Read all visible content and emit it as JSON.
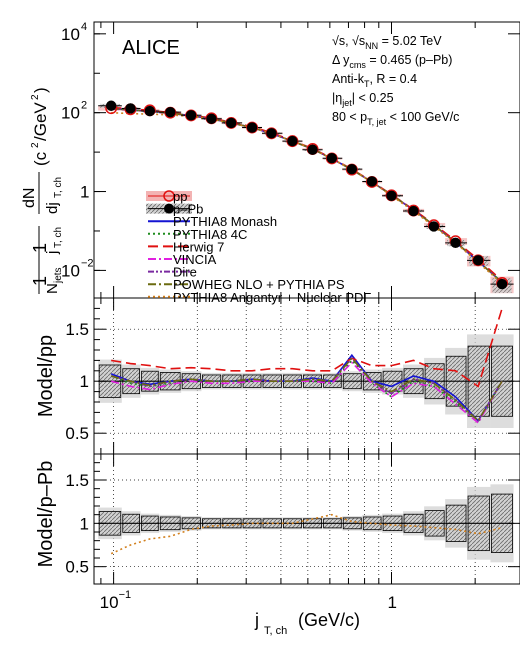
{
  "chart_data": {
    "type": "line",
    "experiment": "ALICE",
    "annotations": [
      [
        "√s, √s",
        "NN",
        " = 5.02 TeV"
      ],
      [
        "Δ y",
        "cms",
        " = 0.465 (p–Pb)"
      ],
      [
        "Anti-k",
        "T",
        ", R = 0.4"
      ],
      [
        "|η",
        "jet",
        "| < 0.25"
      ],
      [
        "80 < p",
        "T, jet",
        " < 100 GeV/c"
      ]
    ],
    "xlabel": [
      "j",
      "T, ch",
      " (GeV/c)"
    ],
    "ylabel_top": "(1/N_jets)(1/j_T,ch) dN/dj_T,ch (c²/GeV²)",
    "ylabel_mid": "Model/pp",
    "ylabel_bottom": "Model/p–Pb",
    "x_scale": "log",
    "xlim": [
      0.085,
      2.9
    ],
    "top_ylim_log10": [
      -2.7,
      4.3
    ],
    "mid_ylim": [
      0.3,
      1.8
    ],
    "bottom_ylim": [
      0.3,
      1.8
    ],
    "x_ticks": [
      {
        "v": 0.1,
        "t": "10"
      },
      {
        "v": 1,
        "t": "1"
      }
    ],
    "top_y_ticks": [
      "10",
      "10",
      "1",
      "10"
    ],
    "ratio_y_ticks": [
      {
        "v": 0.5,
        "t": "0.5"
      },
      {
        "v": 1,
        "t": "1"
      },
      {
        "v": 1.5,
        "t": "1.5"
      }
    ],
    "legend": [
      {
        "label": "pp",
        "style": "open-circle-red"
      },
      {
        "label": "p–Pb",
        "style": "filled-circle-black"
      },
      {
        "label": "PYTHIA8 Monash",
        "style": "solid",
        "color": "#1414d2"
      },
      {
        "label": "PYTHIA8 4C",
        "style": "dotted",
        "color": "#1e8c1e"
      },
      {
        "label": "Herwig 7",
        "style": "dashed",
        "color": "#e01010"
      },
      {
        "label": "VINCIA",
        "style": "dashdot",
        "color": "#e020e0"
      },
      {
        "label": "Dire",
        "style": "dashdotdot",
        "color": "#7a2aa0"
      },
      {
        "label": "POWHEG NLO + PYTHIA PS",
        "style": "dashdot",
        "color": "#6b6b10"
      },
      {
        "label": "PYTHIA8 Angantyr + Nuclear PDF",
        "style": "dotted",
        "color": "#d2801e"
      }
    ],
    "x": [
      0.098,
      0.115,
      0.135,
      0.16,
      0.19,
      0.225,
      0.265,
      0.315,
      0.37,
      0.44,
      0.52,
      0.61,
      0.72,
      0.85,
      1.0,
      1.2,
      1.42,
      1.7,
      2.05,
      2.5
    ],
    "bin_edges": [
      0.088,
      0.107,
      0.125,
      0.146,
      0.175,
      0.207,
      0.245,
      0.29,
      0.342,
      0.405,
      0.478,
      0.565,
      0.665,
      0.785,
      0.925,
      1.1,
      1.31,
      1.56,
      1.87,
      2.27,
      2.75
    ],
    "pp": [
      130,
      122,
      115,
      100,
      85,
      72,
      55,
      42,
      30,
      19,
      12,
      6.9,
      3.6,
      1.75,
      0.8,
      0.33,
      0.14,
      0.055,
      0.018,
      0.0048
    ],
    "pPb": [
      150,
      128,
      110,
      103,
      86,
      70,
      55,
      42,
      30,
      19,
      11.5,
      7.0,
      3.7,
      1.8,
      0.78,
      0.32,
      0.13,
      0.05,
      0.018,
      0.0045
    ],
    "rel_uncertainty": [
      0.13,
      0.1,
      0.08,
      0.07,
      0.06,
      0.05,
      0.05,
      0.05,
      0.05,
      0.05,
      0.05,
      0.05,
      0.06,
      0.07,
      0.08,
      0.1,
      0.14,
      0.2,
      0.3,
      0.45
    ],
    "models": [
      {
        "name": "PYTHIA8 Monash",
        "values": [
          128,
          118,
          109,
          97,
          84,
          70,
          55,
          42,
          29.5,
          19,
          12,
          6.8,
          3.6,
          1.75,
          0.82,
          0.34,
          0.14,
          0.052,
          0.017,
          0.005
        ]
      },
      {
        "name": "PYTHIA8 4C",
        "values": [
          126,
          117,
          108,
          96,
          83,
          70,
          55,
          42,
          29.5,
          19,
          12,
          6.8,
          3.6,
          1.75,
          0.82,
          0.34,
          0.14,
          0.052,
          0.017,
          0.005
        ]
      },
      {
        "name": "Herwig 7",
        "values": [
          135,
          125,
          114,
          101,
          87,
          73,
          57,
          44,
          31,
          19.6,
          12.3,
          7.0,
          3.7,
          1.8,
          0.84,
          0.35,
          0.15,
          0.056,
          0.019,
          0.0055
        ]
      },
      {
        "name": "VINCIA",
        "values": [
          125,
          116,
          107,
          96,
          83,
          70,
          55,
          42,
          29.5,
          19,
          12,
          6.8,
          3.6,
          1.75,
          0.82,
          0.34,
          0.14,
          0.052,
          0.017,
          0.005
        ]
      },
      {
        "name": "Dire",
        "values": [
          127,
          117,
          108,
          97,
          84,
          70,
          55,
          42,
          29.5,
          19,
          12,
          6.8,
          3.6,
          1.75,
          0.82,
          0.34,
          0.14,
          0.052,
          0.017,
          0.005
        ]
      },
      {
        "name": "POWHEG NLO + PYTHIA PS",
        "values": [
          127,
          118,
          109,
          97,
          84,
          70,
          55,
          42,
          29.5,
          19,
          12,
          6.8,
          3.6,
          1.75,
          0.82,
          0.34,
          0.14,
          0.052,
          0.017,
          0.005
        ]
      },
      {
        "name": "PYTHIA8 Angantyr + Nuclear PDF",
        "values": [
          100,
          95,
          92,
          88,
          80,
          68,
          54,
          42,
          30,
          19,
          12,
          6.8,
          3.6,
          1.75,
          0.78,
          0.32,
          0.13,
          0.05,
          0.016,
          0.0046
        ]
      }
    ],
    "ratio_pp": [
      {
        "name": "PYTHIA8 Monash",
        "values": [
          1.07,
          1.0,
          0.97,
          1.0,
          1.02,
          1.0,
          1.0,
          1.02,
          1.0,
          1.0,
          1.03,
          1.0,
          1.25,
          1.0,
          0.95,
          1.05,
          1.0,
          0.85,
          0.62,
          1.0
        ]
      },
      {
        "name": "PYTHIA8 4C",
        "values": [
          1.05,
          0.98,
          0.95,
          0.98,
          1.0,
          1.0,
          1.0,
          1.0,
          1.0,
          1.0,
          1.0,
          0.98,
          1.2,
          0.98,
          0.85,
          1.0,
          0.95,
          0.8,
          0.6,
          1.0
        ]
      },
      {
        "name": "Herwig 7",
        "values": [
          1.2,
          1.17,
          1.15,
          1.12,
          1.13,
          1.12,
          1.1,
          1.1,
          1.12,
          1.12,
          1.1,
          1.1,
          1.22,
          1.15,
          1.15,
          1.2,
          1.12,
          1.1,
          0.95,
          1.7
        ]
      },
      {
        "name": "VINCIA",
        "values": [
          1.0,
          0.95,
          0.92,
          0.97,
          1.0,
          0.98,
          0.98,
          1.0,
          1.0,
          1.0,
          1.0,
          0.98,
          1.18,
          0.98,
          0.85,
          0.98,
          0.95,
          0.78,
          0.6,
          1.0
        ]
      },
      {
        "name": "Dire",
        "values": [
          1.05,
          1.0,
          0.95,
          1.0,
          1.02,
          1.0,
          1.0,
          1.02,
          1.0,
          1.0,
          1.02,
          1.0,
          1.22,
          1.0,
          0.88,
          1.02,
          0.98,
          0.82,
          0.62,
          1.0
        ]
      },
      {
        "name": "POWHEG NLO + PYTHIA PS",
        "values": [
          1.05,
          1.0,
          0.96,
          1.0,
          1.02,
          1.0,
          1.0,
          1.02,
          1.0,
          1.0,
          1.02,
          1.0,
          1.22,
          1.0,
          0.9,
          1.02,
          0.98,
          0.82,
          0.62,
          1.0
        ]
      }
    ],
    "ratio_pPb": [
      {
        "name": "PYTHIA8 Angantyr + Nuclear PDF",
        "values": [
          0.65,
          0.75,
          0.82,
          0.85,
          0.93,
          0.97,
          0.98,
          1.0,
          1.0,
          1.0,
          1.05,
          1.1,
          1.02,
          1.0,
          0.98,
          0.97,
          0.95,
          0.93,
          0.88,
          0.95
        ]
      }
    ]
  }
}
